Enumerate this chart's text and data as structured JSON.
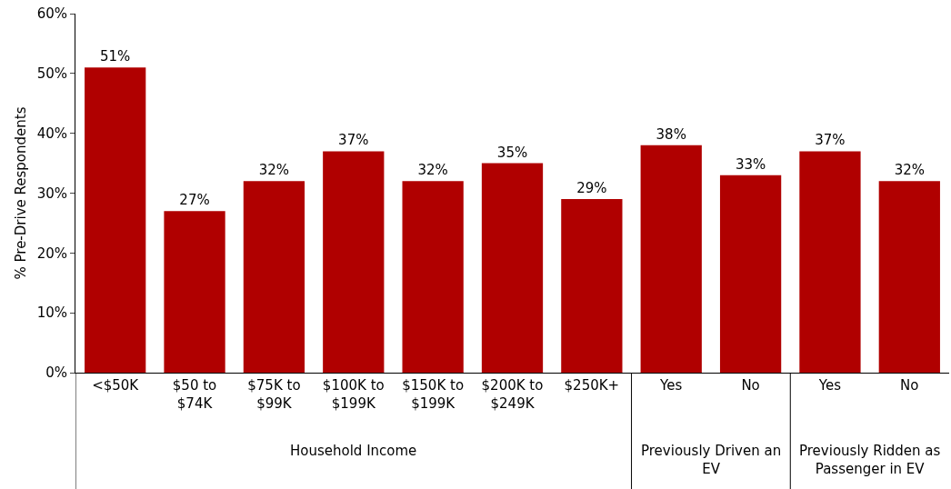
{
  "chart_data": {
    "type": "bar",
    "ylabel": "% Pre-Drive Respondents",
    "categories": [
      "<$50K",
      "$50 to $74K",
      "$75K to $99K",
      "$100K to $199K",
      "$150K to $199K",
      "$200K to $249K",
      "$250K+",
      "Yes",
      "No",
      "Yes",
      "No"
    ],
    "values": [
      51,
      27,
      32,
      37,
      32,
      35,
      29,
      38,
      33,
      37,
      32
    ],
    "color": "#b00000",
    "value_labels": [
      "51%",
      "27%",
      "32%",
      "37%",
      "32%",
      "35%",
      "29%",
      "38%",
      "33%",
      "37%",
      "32%"
    ],
    "ylim": [
      0,
      60
    ],
    "yticks": [
      {
        "value": 0,
        "label": "0%"
      },
      {
        "value": 10,
        "label": "10%"
      },
      {
        "value": 20,
        "label": "20%"
      },
      {
        "value": 30,
        "label": "30%"
      },
      {
        "value": 40,
        "label": "40%"
      },
      {
        "value": 50,
        "label": "50%"
      },
      {
        "value": 60,
        "label": "60%"
      }
    ],
    "annotations": [
      "Household Income",
      "Previously Driven an EV",
      "Previously Ridden as Passenger in EV"
    ]
  }
}
